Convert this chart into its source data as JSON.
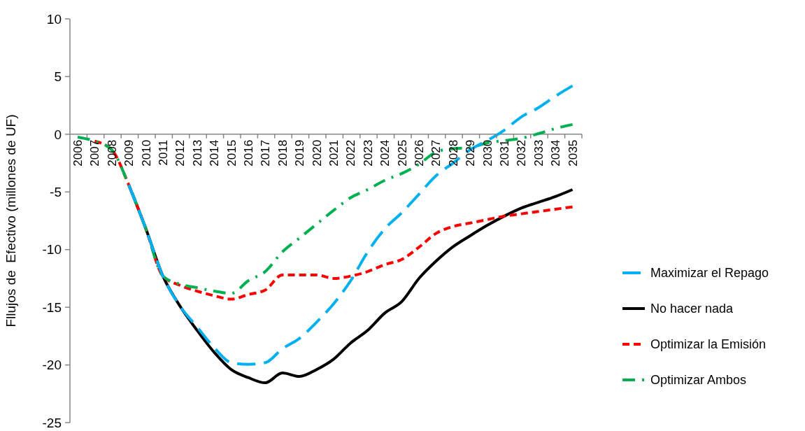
{
  "chart_data": {
    "type": "line",
    "ylabel": "Fllujos de  Efectivo (millones de UF)",
    "categories": [
      "2006",
      "2007",
      "2008",
      "2009",
      "2010",
      "2011",
      "2012",
      "2013",
      "2014",
      "2015",
      "2016",
      "2017",
      "2018",
      "2019",
      "2020",
      "2021",
      "2022",
      "2023",
      "2024",
      "2025",
      "2026",
      "2027",
      "2028",
      "2029",
      "2030",
      "2031",
      "2032",
      "2033",
      "2034",
      "2035"
    ],
    "series": [
      {
        "name": "Maximizar el Repago",
        "color": "#00b0f0",
        "line_style": "dashed",
        "values": [
          null,
          null,
          null,
          -4.4,
          -8.2,
          -12.3,
          -14.9,
          -16.7,
          -18.5,
          -19.8,
          -19.95,
          -19.8,
          -18.6,
          -17.7,
          -16.3,
          -14.7,
          -12.7,
          -10.2,
          -8.2,
          -6.8,
          -5.2,
          -3.6,
          -2.5,
          -1.35,
          -0.55,
          0.35,
          1.5,
          2.3,
          3.3,
          4.2
        ]
      },
      {
        "name": "No hacer nada",
        "color": "#000000",
        "line_style": "solid",
        "values": [
          null,
          null,
          null,
          -4.4,
          -8.2,
          -12.3,
          -14.9,
          -17.0,
          -18.9,
          -20.4,
          -21.1,
          -21.55,
          -20.7,
          -21.0,
          -20.4,
          -19.5,
          -18.1,
          -17.0,
          -15.5,
          -14.5,
          -12.5,
          -11.0,
          -9.75,
          -8.8,
          -7.9,
          -7.1,
          -6.4,
          -5.9,
          -5.4,
          -4.8
        ]
      },
      {
        "name": "Optimizar la Emisión",
        "color": "#ff0000",
        "line_style": "dashed",
        "values": [
          null,
          -0.6,
          -1.35,
          -4.4,
          -8.2,
          -12.3,
          -13.1,
          -13.6,
          -14.0,
          -14.3,
          -13.9,
          -13.5,
          -12.2,
          -12.2,
          -12.2,
          -12.5,
          -12.3,
          -11.9,
          -11.3,
          -10.85,
          -9.8,
          -8.6,
          -8.0,
          -7.7,
          -7.4,
          -7.1,
          -6.9,
          -6.7,
          -6.5,
          -6.3
        ]
      },
      {
        "name": "Optimizar Ambos",
        "color": "#00b050",
        "line_style": "dashdot",
        "values": [
          -0.25,
          -0.6,
          -1.35,
          -4.4,
          -8.2,
          -12.3,
          -13.0,
          -13.3,
          -13.6,
          -13.8,
          -12.7,
          -11.9,
          -10.2,
          -9.0,
          -7.8,
          -6.6,
          -5.5,
          -4.8,
          -4.0,
          -3.4,
          -2.6,
          -1.55,
          -1.25,
          -1.15,
          -0.75,
          -0.55,
          -0.35,
          0.05,
          0.5,
          0.85
        ]
      }
    ],
    "ylim": [
      -25,
      10
    ],
    "yticks": [
      -25,
      -20,
      -15,
      -10,
      -5,
      0,
      5,
      10
    ],
    "grid": false,
    "legend": "right"
  }
}
